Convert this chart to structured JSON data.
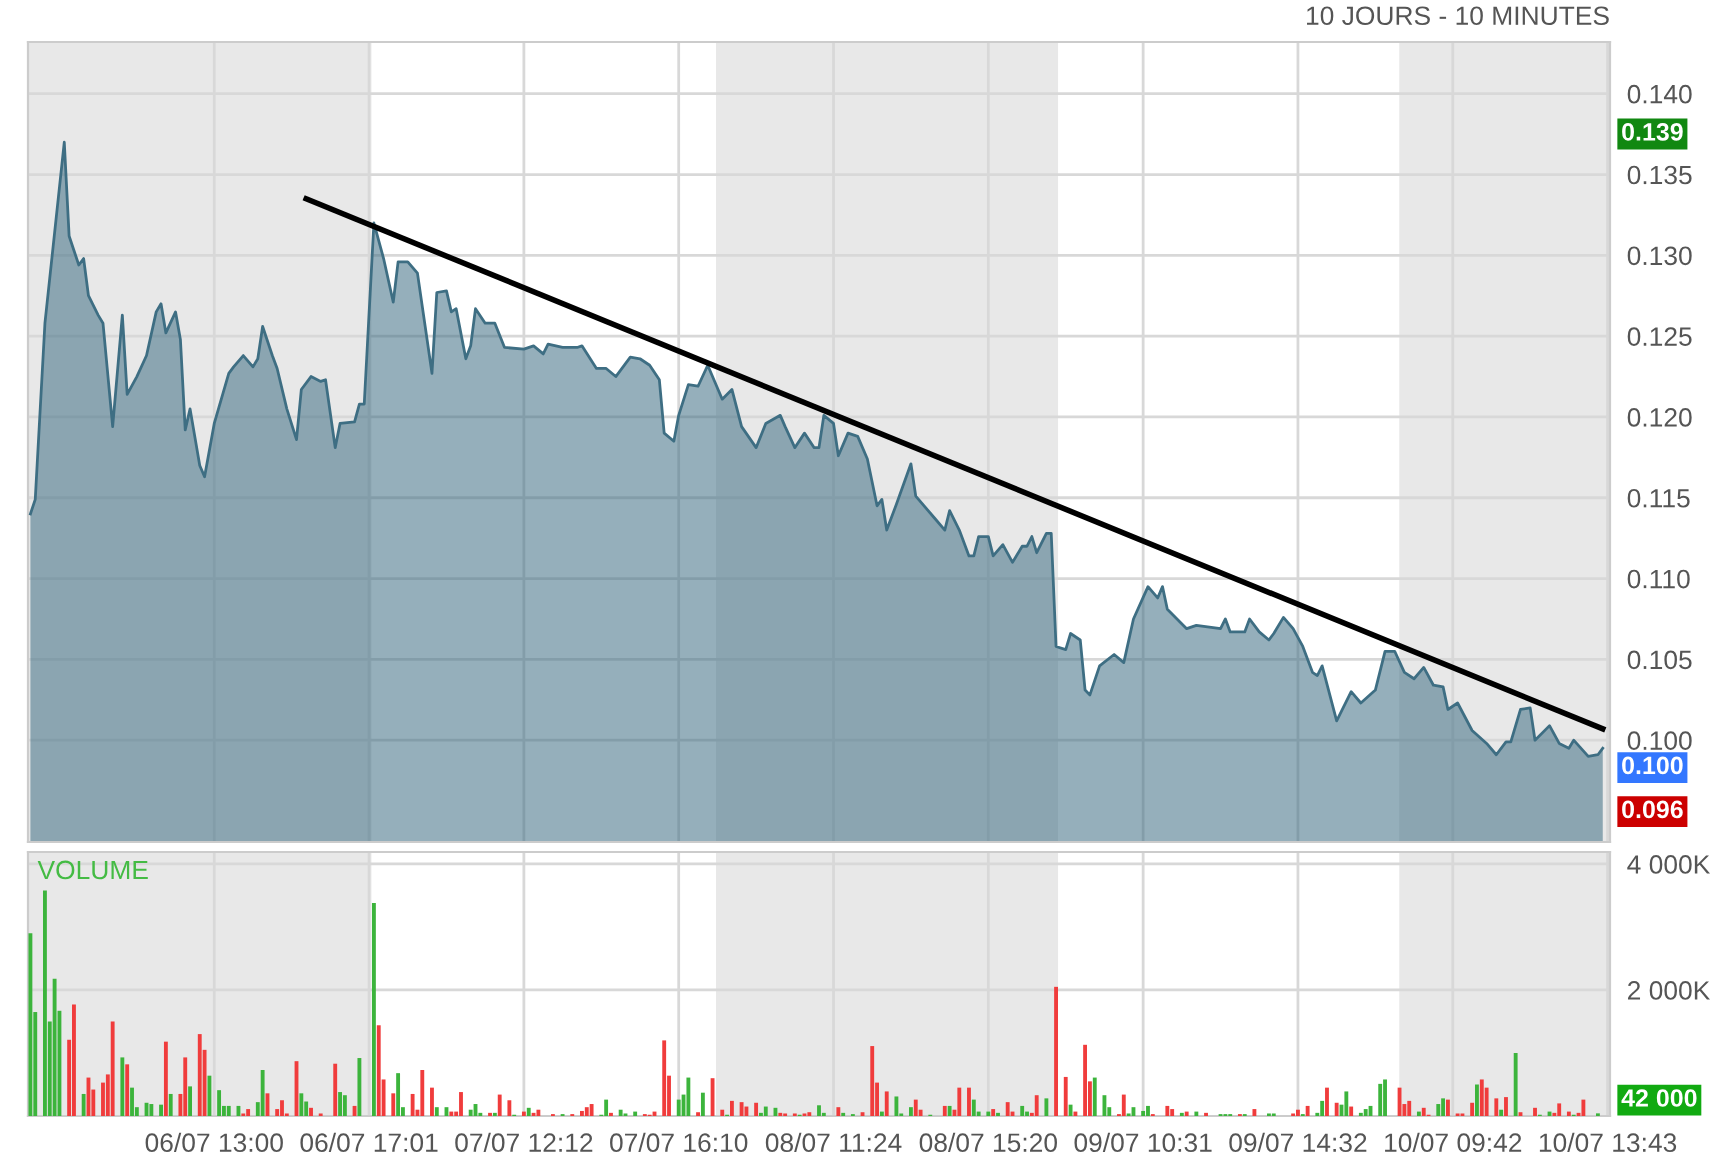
{
  "chart_data": [
    {
      "type": "area",
      "title": "10 JOURS - 10 MINUTES",
      "tick_labels": "y",
      "grid": true,
      "ylim": [
        0.0937,
        0.1432
      ],
      "yticks": [
        {
          "value": 0.1,
          "label": "0.100"
        },
        {
          "value": 0.105,
          "label": "0.105"
        },
        {
          "value": 0.11,
          "label": "0.110"
        },
        {
          "value": 0.115,
          "label": "0.115"
        },
        {
          "value": 0.12,
          "label": "0.120"
        },
        {
          "value": 0.125,
          "label": "0.125"
        },
        {
          "value": 0.13,
          "label": "0.130"
        },
        {
          "value": 0.135,
          "label": "0.135"
        },
        {
          "value": 0.14,
          "label": "0.140"
        }
      ],
      "annotations": [
        "0.139",
        "0.100",
        "0.096"
      ],
      "series": [
        {
          "type": "area",
          "color": "#3e6e83",
          "values": [
            0.114,
            0.1149,
            null,
            0.1258,
            null,
            null,
            null,
            0.137,
            0.1312,
            null,
            0.1294,
            0.1298,
            0.1275,
            null,
            0.1263,
            0.1258,
            null,
            0.1194,
            null,
            0.1263,
            0.1214,
            null,
            0.1225,
            null,
            0.1238,
            null,
            0.1265,
            0.127,
            0.1252,
            null,
            0.1265,
            0.1248,
            0.1192,
            0.1205,
            null,
            0.117,
            0.1163,
            null,
            0.1196,
            null,
            null,
            0.1227,
            0.1231,
            null,
            0.1238,
            null,
            0.1231,
            0.1236,
            0.1256,
            null,
            0.1238,
            0.123,
            null,
            0.1205,
            null,
            0.1186,
            0.1217,
            null,
            0.1225,
            null,
            0.1222,
            0.1223,
            null,
            0.1181,
            0.1196,
            null,
            null,
            0.1197,
            0.1208,
            0.1208,
            null,
            0.132,
            null,
            0.1298,
            null,
            0.1271,
            0.1296,
            null,
            0.1296,
            null,
            0.1289,
            null,
            null,
            0.1227,
            0.1277,
            null,
            0.1278,
            0.1265,
            0.1267,
            null,
            0.1236,
            0.1244,
            0.1267,
            null,
            0.1258,
            null,
            0.1258,
            null,
            0.1243,
            null,
            null,
            null,
            0.1242,
            null,
            0.1244,
            null,
            0.1239,
            0.1245,
            null,
            null,
            0.1243,
            null,
            null,
            0.1243,
            0.1244,
            null,
            null,
            0.123,
            null,
            0.123,
            null,
            0.1225,
            null,
            null,
            0.1237,
            null,
            0.1236,
            null,
            0.1232,
            null,
            0.1223,
            0.119,
            null,
            0.1185,
            0.1201,
            null,
            0.122,
            null,
            0.1219,
            null,
            0.1232,
            null,
            null,
            0.1211,
            null,
            0.1217,
            null,
            0.1194,
            null,
            null,
            0.1181,
            null,
            0.1196,
            null,
            null,
            0.1201,
            0.1194,
            null,
            0.1181,
            null,
            0.119,
            null,
            0.1181,
            0.1181,
            0.1201,
            null,
            0.1196,
            0.1176,
            null,
            0.119,
            null,
            0.1188,
            null,
            0.1174,
            null,
            0.1145,
            0.1149,
            0.113,
            null,
            0.1146,
            null,
            null,
            0.1171,
            0.1151,
            null,
            null,
            null,
            0.1137,
            null,
            0.113,
            0.1142,
            null,
            0.113,
            null,
            0.1114,
            0.1114,
            0.1126,
            null,
            0.1126,
            0.1114,
            null,
            0.1121,
            null,
            0.111,
            null,
            0.112,
            0.112,
            0.1126,
            0.1116,
            null,
            0.1128,
            0.1128,
            0.1058,
            null,
            0.1056,
            0.1066,
            null,
            0.1062,
            0.1031,
            0.1028,
            null,
            0.1046,
            null,
            null,
            0.1053,
            null,
            0.1048,
            null,
            0.1075,
            null,
            null,
            0.1095,
            null,
            0.1088,
            0.1095,
            0.1081,
            null,
            null,
            null,
            0.1069,
            null,
            0.1071,
            null,
            null,
            null,
            null,
            0.1069,
            0.1075,
            0.1067,
            null,
            null,
            0.1067,
            0.1075,
            null,
            0.1067,
            null,
            0.1062,
            0.1066,
            null,
            0.1076,
            null,
            0.1069,
            null,
            0.1058,
            null,
            0.1042,
            0.104,
            0.1046,
            null,
            null,
            0.1012,
            null,
            null,
            0.103,
            null,
            0.1023,
            null,
            null,
            0.1031,
            null,
            0.1055,
            null,
            0.1055,
            null,
            0.1042,
            null,
            0.1038,
            null,
            0.1045,
            null,
            0.1034,
            null,
            0.1033,
            0.1019,
            null,
            0.1023,
            null,
            null,
            0.1006,
            null,
            null,
            0.0998,
            null,
            0.0991,
            null,
            0.0999,
            0.0999,
            null,
            0.1019,
            null,
            0.102,
            0.1,
            null,
            null,
            0.1009,
            null,
            0.0998,
            null,
            0.0995,
            0.1,
            null,
            null,
            0.099,
            null,
            0.0991,
            0.0995,
            null
          ]
        },
        {
          "type": "line",
          "color": "#000000",
          "values": [
            null,
            null,
            null,
            null,
            null,
            null,
            null,
            null,
            null,
            null,
            null,
            null,
            null,
            null,
            null,
            null,
            null,
            null,
            null,
            null,
            null,
            null,
            null,
            null,
            null,
            null,
            null,
            null,
            null,
            null,
            null,
            null,
            null,
            null,
            null,
            null,
            null,
            null,
            null,
            null,
            null,
            null,
            null,
            null,
            null,
            null,
            null,
            null,
            null,
            null,
            null,
            null,
            null,
            null,
            null,
            null,
            null,
            0.1335,
            null,
            null,
            null,
            null,
            null,
            null,
            null,
            null,
            null,
            null,
            null,
            null,
            null,
            null,
            null,
            null,
            null,
            null,
            null,
            null,
            null,
            null,
            null,
            null,
            null,
            null,
            null,
            null,
            null,
            null,
            null,
            null,
            null,
            null,
            null,
            null,
            null,
            null,
            null,
            null,
            null,
            null,
            null,
            null,
            null,
            null,
            null,
            null,
            null,
            null,
            null,
            null,
            null,
            null,
            null,
            null,
            null,
            null,
            null,
            null,
            null,
            null,
            null,
            null,
            null,
            null,
            null,
            null,
            null,
            null,
            null,
            null,
            null,
            null,
            null,
            null,
            null,
            null,
            null,
            null,
            null,
            null,
            null,
            null,
            null,
            null,
            null,
            null,
            null,
            null,
            null,
            null,
            null,
            null,
            null,
            null,
            null,
            null,
            null,
            null,
            null,
            null,
            null,
            null,
            null,
            null,
            null,
            null,
            null,
            null,
            null,
            null,
            null,
            null,
            null,
            null,
            null,
            null,
            null,
            null,
            null,
            null,
            null,
            null,
            null,
            null,
            null,
            null,
            null,
            null,
            null,
            null,
            null,
            null,
            null,
            null,
            null,
            null,
            null,
            null,
            null,
            null,
            null,
            null,
            null,
            null,
            null,
            null,
            null,
            null,
            null,
            null,
            null,
            null,
            null,
            null,
            null,
            null,
            null,
            null,
            null,
            null,
            null,
            null,
            null,
            null,
            null,
            null,
            null,
            null,
            null,
            null,
            null,
            null,
            null,
            null,
            null,
            null,
            null,
            null,
            null,
            null,
            null,
            null,
            null,
            null,
            null,
            null,
            null,
            null,
            null,
            null,
            null,
            null,
            null,
            null,
            null,
            null,
            null,
            null,
            null,
            null,
            null,
            null,
            null,
            null,
            null,
            null,
            null,
            null,
            null,
            null,
            null,
            null,
            null,
            null,
            null,
            null,
            null,
            null,
            null,
            null,
            null,
            null,
            null,
            null,
            null,
            null,
            null,
            null,
            null,
            null,
            null,
            null,
            null,
            null,
            null,
            null,
            null,
            null,
            null,
            null,
            null,
            null,
            null,
            null,
            null,
            null,
            null,
            null,
            null,
            null,
            null,
            null,
            null,
            null,
            null,
            null,
            null,
            null,
            null,
            null,
            null,
            null,
            null,
            null,
            null,
            0.1007,
            null
          ]
        }
      ]
    },
    {
      "type": "bar",
      "title": "VOLUME",
      "grid": true,
      "categories": [
        null,
        null,
        null,
        null,
        null,
        null,
        null,
        null,
        null,
        null,
        null,
        null,
        null,
        null,
        null,
        null,
        null,
        null,
        null,
        null,
        null,
        null,
        null,
        null,
        null,
        null,
        null,
        null,
        null,
        null,
        null,
        null,
        null,
        null,
        null,
        null,
        null,
        null,
        "06/07 13:00",
        null,
        null,
        null,
        null,
        null,
        null,
        null,
        null,
        null,
        null,
        null,
        null,
        null,
        null,
        null,
        null,
        null,
        null,
        null,
        null,
        null,
        null,
        null,
        null,
        null,
        null,
        null,
        null,
        null,
        null,
        null,
        "06/07 17:01",
        null,
        null,
        null,
        null,
        null,
        null,
        null,
        null,
        null,
        null,
        null,
        null,
        null,
        null,
        null,
        null,
        null,
        null,
        null,
        null,
        null,
        null,
        null,
        null,
        null,
        null,
        null,
        null,
        null,
        null,
        null,
        "07/07 12:12",
        null,
        null,
        null,
        null,
        null,
        null,
        null,
        null,
        null,
        null,
        null,
        null,
        null,
        null,
        null,
        null,
        null,
        null,
        null,
        null,
        null,
        null,
        null,
        null,
        null,
        null,
        null,
        null,
        null,
        null,
        null,
        "07/07 16:10",
        null,
        null,
        null,
        null,
        null,
        null,
        null,
        null,
        null,
        null,
        null,
        null,
        null,
        null,
        null,
        null,
        null,
        null,
        null,
        null,
        null,
        null,
        null,
        null,
        null,
        null,
        null,
        null,
        null,
        null,
        null,
        "08/07 11:24",
        null,
        null,
        null,
        null,
        null,
        null,
        null,
        null,
        null,
        null,
        null,
        null,
        null,
        null,
        null,
        null,
        null,
        null,
        null,
        null,
        null,
        null,
        null,
        null,
        null,
        null,
        null,
        null,
        null,
        null,
        null,
        "08/07 15:20",
        null,
        null,
        null,
        null,
        null,
        null,
        null,
        null,
        null,
        null,
        null,
        null,
        null,
        null,
        null,
        null,
        null,
        null,
        null,
        null,
        null,
        null,
        null,
        null,
        null,
        null,
        null,
        null,
        null,
        null,
        null,
        "09/07 10:31",
        null,
        null,
        null,
        null,
        null,
        null,
        null,
        null,
        null,
        null,
        null,
        null,
        null,
        null,
        null,
        null,
        null,
        null,
        null,
        null,
        null,
        null,
        null,
        null,
        null,
        null,
        null,
        null,
        null,
        null,
        null,
        "09/07 14:32",
        null,
        null,
        null,
        null,
        null,
        null,
        null,
        null,
        null,
        null,
        null,
        null,
        null,
        null,
        null,
        null,
        null,
        null,
        null,
        null,
        null,
        null,
        null,
        null,
        null,
        null,
        null,
        null,
        null,
        null,
        null,
        "10/07 09:42",
        null,
        null,
        null,
        null,
        null,
        null,
        null,
        null,
        null,
        null,
        null,
        null,
        null,
        null,
        null,
        null,
        null,
        null,
        null,
        null,
        null,
        null,
        null,
        null,
        null,
        null,
        null,
        null,
        null,
        null,
        null,
        "10/07 13:43"
      ],
      "ylim": [
        0,
        4190
      ],
      "yticks": [
        {
          "value": 2000,
          "label": "2 000K"
        },
        {
          "value": 4000,
          "label": "4 000K"
        }
      ],
      "annotations": [
        "42 000"
      ],
      "values": [
        2900,
        1650,
        null,
        3580,
        1500,
        2180,
        1670,
        null,
        1210,
        1770,
        null,
        350,
        610,
        420,
        null,
        530,
        660,
        1500,
        null,
        930,
        820,
        450,
        140,
        null,
        210,
        190,
        null,
        180,
        1180,
        350,
        null,
        350,
        930,
        470,
        null,
        1300,
        1050,
        640,
        null,
        410,
        160,
        160,
        null,
        160,
        40,
        110,
        null,
        220,
        730,
        360,
        null,
        110,
        250,
        40,
        null,
        870,
        360,
        230,
        130,
        null,
        40,
        null,
        null,
        830,
        380,
        330,
        null,
        160,
        920,
        null,
        null,
        3380,
        1440,
        580,
        null,
        360,
        680,
        140,
        null,
        350,
        100,
        730,
        null,
        450,
        140,
        null,
        140,
        70,
        70,
        380,
        null,
        100,
        190,
        50,
        null,
        50,
        50,
        340,
        null,
        250,
        20,
        null,
        70,
        130,
        50,
        100,
        null,
        null,
        30,
        null,
        30,
        null,
        30,
        null,
        80,
        140,
        190,
        null,
        20,
        260,
        50,
        null,
        100,
        40,
        null,
        70,
        null,
        30,
        20,
        70,
        null,
        1200,
        640,
        null,
        260,
        340,
        610,
        null,
        60,
        370,
        null,
        600,
        null,
        100,
        20,
        240,
        null,
        220,
        150,
        null,
        210,
        50,
        150,
        null,
        130,
        50,
        40,
        null,
        40,
        20,
        40,
        60,
        null,
        170,
        50,
        null,
        null,
        140,
        50,
        null,
        30,
        null,
        60,
        null,
        1110,
        530,
        70,
        390,
        null,
        310,
        40,
        null,
        140,
        260,
        100,
        null,
        20,
        null,
        null,
        160,
        160,
        100,
        450,
        null,
        450,
        260,
        70,
        null,
        70,
        110,
        50,
        null,
        220,
        70,
        null,
        160,
        70,
        50,
        330,
        null,
        280,
        null,
        2050,
        null,
        620,
        180,
        70,
        null,
        1130,
        550,
        610,
        null,
        330,
        140,
        null,
        30,
        340,
        40,
        140,
        null,
        80,
        160,
        30,
        null,
        null,
        160,
        110,
        null,
        50,
        70,
        null,
        70,
        null,
        50,
        null,
        null,
        30,
        30,
        30,
        null,
        30,
        30,
        null,
        110,
        null,
        null,
        40,
        40,
        null,
        null,
        null,
        40,
        100,
        30,
        160,
        null,
        50,
        240,
        450,
        null,
        210,
        180,
        390,
        150,
        null,
        50,
        110,
        160,
        null,
        510,
        580,
        null,
        null,
        450,
        190,
        240,
        null,
        70,
        130,
        20,
        null,
        190,
        280,
        260,
        null,
        40,
        40,
        null,
        210,
        500,
        580,
        450,
        null,
        280,
        100,
        300,
        null,
        1000,
        60,
        null,
        null,
        130,
        20,
        null,
        70,
        50,
        200,
        null,
        70,
        20,
        50,
        260,
        null,
        null,
        42,
        null,
        null
      ],
      "colors": [
        "#3cb43c",
        "#3cb43c",
        null,
        "#3cb43c",
        "#3cb43c",
        "#3cb43c",
        "#3cb43c",
        null,
        "#f03c3c",
        "#f03c3c",
        null,
        "#3cb43c",
        "#f03c3c",
        "#f03c3c",
        null,
        "#f03c3c",
        "#f03c3c",
        "#f03c3c",
        null,
        "#3cb43c",
        "#f03c3c",
        "#3cb43c",
        "#3cb43c",
        null,
        "#3cb43c",
        "#3cb43c",
        null,
        "#3cb43c",
        "#f03c3c",
        "#3cb43c",
        null,
        "#f03c3c",
        "#f03c3c",
        "#3cb43c",
        null,
        "#f03c3c",
        "#f03c3c",
        "#3cb43c",
        null,
        "#3cb43c",
        "#3cb43c",
        "#3cb43c",
        null,
        "#3cb43c",
        "#f03c3c",
        "#f03c3c",
        null,
        "#3cb43c",
        "#3cb43c",
        "#f03c3c",
        null,
        "#f03c3c",
        "#f03c3c",
        "#f03c3c",
        null,
        "#f03c3c",
        "#3cb43c",
        "#3cb43c",
        "#f03c3c",
        null,
        "#f03c3c",
        null,
        null,
        "#f03c3c",
        "#3cb43c",
        "#3cb43c",
        null,
        "#f03c3c",
        "#3cb43c",
        null,
        null,
        "#3cb43c",
        "#f03c3c",
        "#f03c3c",
        null,
        "#f03c3c",
        "#3cb43c",
        "#3cb43c",
        null,
        "#f03c3c",
        "#f03c3c",
        "#f03c3c",
        null,
        "#f03c3c",
        "#3cb43c",
        null,
        "#3cb43c",
        "#f03c3c",
        "#f03c3c",
        "#f03c3c",
        null,
        "#3cb43c",
        "#3cb43c",
        "#3cb43c",
        null,
        "#f03c3c",
        "#3cb43c",
        "#f03c3c",
        null,
        "#f03c3c",
        "#3cb43c",
        null,
        "#f03c3c",
        "#3cb43c",
        "#f03c3c",
        "#f03c3c",
        null,
        null,
        "#f03c3c",
        null,
        "#3cb43c",
        null,
        "#f03c3c",
        null,
        "#f03c3c",
        "#f03c3c",
        "#f03c3c",
        null,
        "#3cb43c",
        "#3cb43c",
        "#f03c3c",
        null,
        "#3cb43c",
        "#3cb43c",
        null,
        "#3cb43c",
        null,
        "#f03c3c",
        "#f03c3c",
        "#f03c3c",
        null,
        "#f03c3c",
        "#f03c3c",
        null,
        "#3cb43c",
        "#3cb43c",
        "#3cb43c",
        null,
        "#f03c3c",
        "#3cb43c",
        null,
        "#f03c3c",
        null,
        "#f03c3c",
        "#3cb43c",
        "#f03c3c",
        null,
        "#f03c3c",
        "#f03c3c",
        null,
        "#f03c3c",
        "#3cb43c",
        "#3cb43c",
        null,
        "#3cb43c",
        "#f03c3c",
        "#f03c3c",
        null,
        "#f03c3c",
        "#3cb43c",
        "#f03c3c",
        "#f03c3c",
        null,
        "#3cb43c",
        "#3cb43c",
        null,
        null,
        "#f03c3c",
        "#3cb43c",
        null,
        "#3cb43c",
        null,
        "#f03c3c",
        null,
        "#f03c3c",
        "#f03c3c",
        "#3cb43c",
        "#f03c3c",
        null,
        "#3cb43c",
        "#3cb43c",
        null,
        "#3cb43c",
        "#f03c3c",
        "#f03c3c",
        null,
        "#3cb43c",
        null,
        null,
        "#f03c3c",
        "#3cb43c",
        "#f03c3c",
        "#f03c3c",
        null,
        "#f03c3c",
        "#3cb43c",
        "#3cb43c",
        null,
        "#3cb43c",
        "#f03c3c",
        "#3cb43c",
        null,
        "#f03c3c",
        "#f03c3c",
        null,
        "#3cb43c",
        "#3cb43c",
        "#f03c3c",
        "#f03c3c",
        null,
        "#3cb43c",
        null,
        "#f03c3c",
        null,
        "#f03c3c",
        "#3cb43c",
        "#f03c3c",
        null,
        "#f03c3c",
        "#f03c3c",
        "#3cb43c",
        null,
        "#3cb43c",
        "#3cb43c",
        null,
        "#f03c3c",
        "#f03c3c",
        "#3cb43c",
        "#3cb43c",
        null,
        "#3cb43c",
        "#3cb43c",
        "#f03c3c",
        null,
        null,
        "#f03c3c",
        "#f03c3c",
        null,
        "#3cb43c",
        "#f03c3c",
        null,
        "#3cb43c",
        null,
        "#f03c3c",
        null,
        null,
        "#3cb43c",
        "#3cb43c",
        "#3cb43c",
        null,
        "#f03c3c",
        "#3cb43c",
        null,
        "#f03c3c",
        null,
        null,
        "#3cb43c",
        "#3cb43c",
        null,
        null,
        null,
        "#f03c3c",
        "#f03c3c",
        "#3cb43c",
        "#f03c3c",
        null,
        "#3cb43c",
        "#3cb43c",
        "#f03c3c",
        null,
        "#f03c3c",
        "#3cb43c",
        "#3cb43c",
        "#f03c3c",
        null,
        "#3cb43c",
        "#3cb43c",
        "#3cb43c",
        null,
        "#3cb43c",
        "#3cb43c",
        null,
        null,
        "#f03c3c",
        "#f03c3c",
        "#f03c3c",
        null,
        "#3cb43c",
        "#f03c3c",
        "#f03c3c",
        null,
        "#3cb43c",
        "#3cb43c",
        "#f03c3c",
        null,
        "#f03c3c",
        "#f03c3c",
        null,
        "#f03c3c",
        "#3cb43c",
        "#f03c3c",
        "#f03c3c",
        null,
        "#f03c3c",
        "#3cb43c",
        "#f03c3c",
        null,
        "#3cb43c",
        "#f03c3c",
        null,
        null,
        "#f03c3c",
        "#3cb43c",
        null,
        "#3cb43c",
        "#f03c3c",
        "#f03c3c",
        null,
        "#f03c3c",
        "#3cb43c",
        "#f03c3c",
        "#f03c3c",
        null,
        null,
        "#3cb43c",
        null,
        null
      ]
    }
  ]
}
